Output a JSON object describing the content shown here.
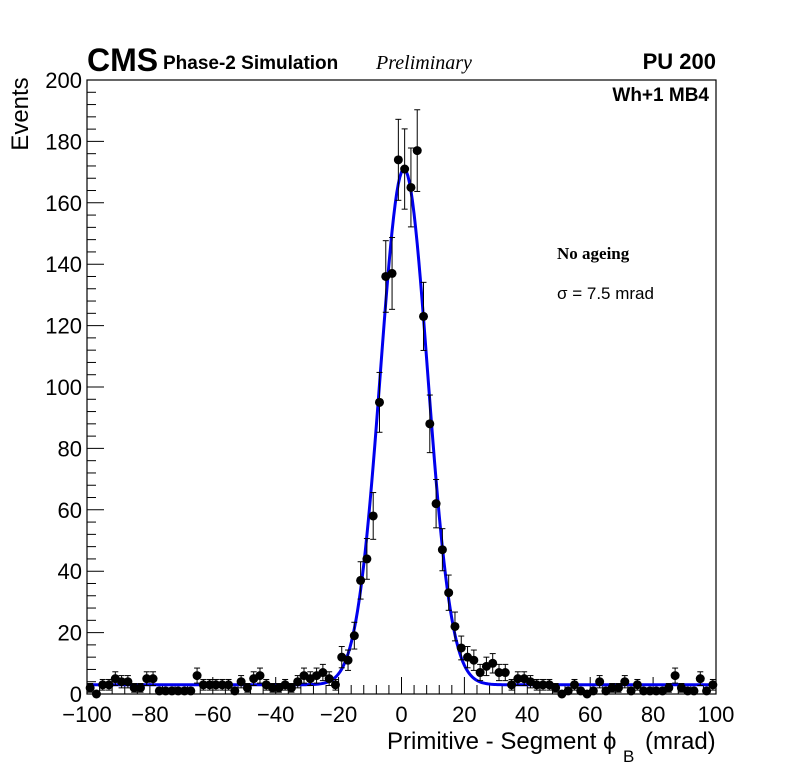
{
  "header": {
    "experiment": "CMS",
    "subtitle": "Phase-2 Simulation",
    "status": "Preliminary",
    "pileup": "PU 200"
  },
  "annotations": {
    "chamber": "Wh+1 MB4",
    "condition": "No ageing",
    "resolution": "σ = 7.5 mrad"
  },
  "chart_data": {
    "type": "scatter",
    "title": "",
    "xlabel_main": "Primitive - Segment ϕ",
    "xlabel_sub": "B",
    "xlabel_unit": "(mrad)",
    "ylabel": "Events",
    "xlim": [
      -100,
      100
    ],
    "ylim": [
      0,
      200
    ],
    "x_ticks": [
      -100,
      -80,
      -60,
      -40,
      -20,
      0,
      20,
      40,
      60,
      80,
      100
    ],
    "x_tick_labels": [
      "−100",
      "−80",
      "−60",
      "−40",
      "−20",
      "0",
      "20",
      "40",
      "60",
      "80",
      "100"
    ],
    "y_ticks": [
      0,
      20,
      40,
      60,
      80,
      100,
      120,
      140,
      160,
      180,
      200
    ],
    "y_tick_labels": [
      "0",
      "20",
      "40",
      "60",
      "80",
      "100",
      "120",
      "140",
      "160",
      "180",
      "200"
    ],
    "series": [
      {
        "name": "Simulation",
        "style": "markers-with-errors",
        "color": "#000000",
        "x": [
          -99,
          -97,
          -95,
          -93,
          -91,
          -89,
          -87,
          -85,
          -83,
          -81,
          -79,
          -77,
          -75,
          -73,
          -71,
          -69,
          -67,
          -65,
          -63,
          -61,
          -59,
          -57,
          -55,
          -53,
          -51,
          -49,
          -47,
          -45,
          -43,
          -41,
          -39,
          -37,
          -35,
          -33,
          -31,
          -29,
          -27,
          -25,
          -23,
          -21,
          -19,
          -17,
          -15,
          -13,
          -11,
          -9,
          -7,
          -5,
          -3,
          -1,
          1,
          3,
          5,
          7,
          9,
          11,
          13,
          15,
          17,
          19,
          21,
          23,
          25,
          27,
          29,
          31,
          33,
          35,
          37,
          39,
          41,
          43,
          45,
          47,
          49,
          51,
          53,
          55,
          57,
          59,
          61,
          63,
          65,
          67,
          69,
          71,
          73,
          75,
          77,
          79,
          81,
          83,
          85,
          87,
          89,
          91,
          93,
          95,
          97,
          99
        ],
        "y": [
          2,
          0,
          3,
          3,
          5,
          4,
          4,
          2,
          2,
          5,
          5,
          1,
          1,
          1,
          1,
          1,
          1,
          6,
          3,
          3,
          3,
          3,
          3,
          1,
          4,
          2,
          5,
          6,
          3,
          2,
          2,
          3,
          2,
          4,
          6,
          5,
          6,
          7,
          5,
          3,
          12,
          11,
          19,
          37,
          44,
          58,
          95,
          136,
          137,
          174,
          171,
          165,
          177,
          123,
          88,
          62,
          47,
          33,
          22,
          15,
          12,
          11,
          7,
          9,
          10,
          7,
          7,
          3,
          5,
          5,
          4,
          3,
          3,
          3,
          2,
          0,
          1,
          3,
          1,
          0,
          1,
          4,
          1,
          2,
          2,
          4,
          1,
          3,
          1,
          1,
          1,
          1,
          2,
          6,
          2,
          1,
          1,
          5,
          1,
          3
        ]
      },
      {
        "name": "Gaussian fit",
        "style": "line",
        "color": "#0000ee",
        "model": "gaussian+constant",
        "amplitude": 168,
        "mean": 0.8,
        "sigma": 7.5,
        "baseline": 3
      }
    ]
  }
}
